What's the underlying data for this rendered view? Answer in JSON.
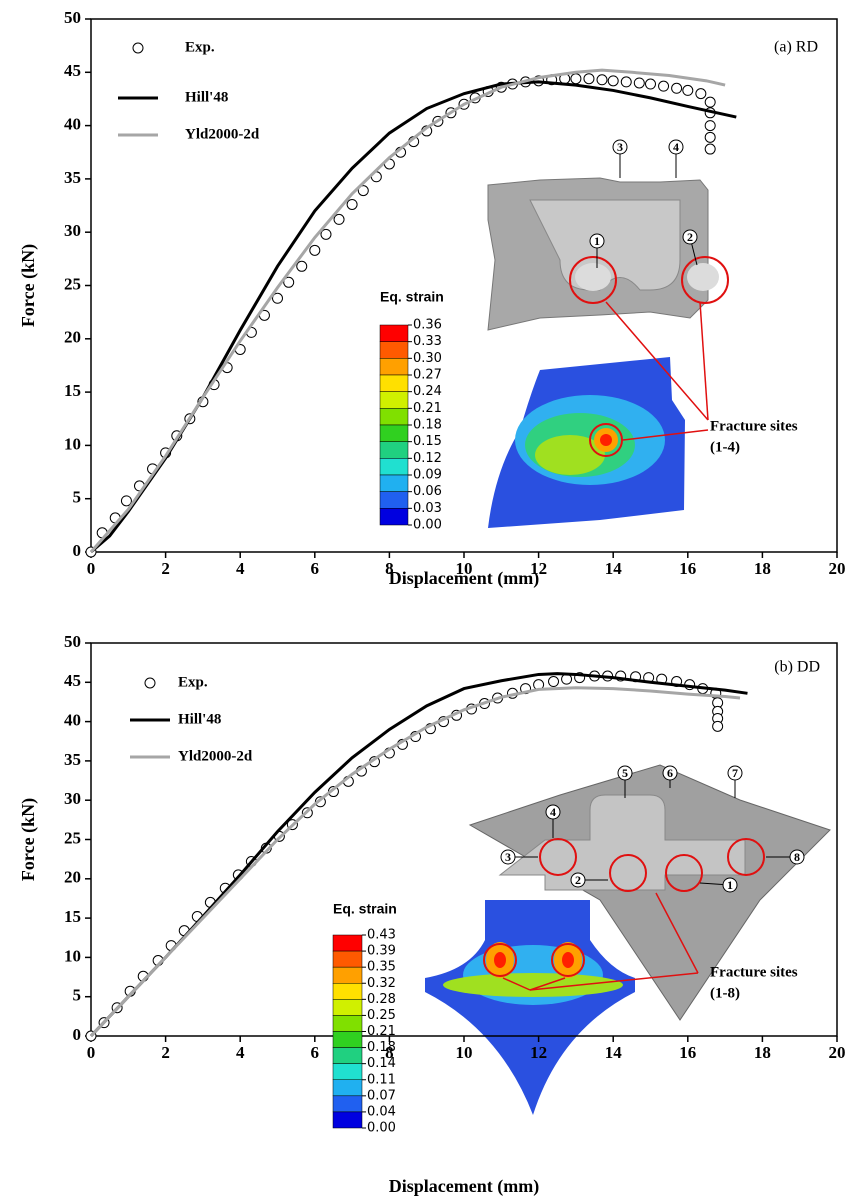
{
  "chart_data": [
    {
      "type": "line",
      "annotation": "(a) RD",
      "xlabel": "Displacement (mm)",
      "ylabel": "Force (kN)",
      "xlim": [
        0,
        20
      ],
      "ylim": [
        0,
        50
      ],
      "xticks": [
        0,
        2,
        4,
        6,
        8,
        10,
        12,
        14,
        16,
        18,
        20
      ],
      "yticks": [
        0,
        5,
        10,
        15,
        20,
        25,
        30,
        35,
        40,
        45,
        50
      ],
      "legend": "upper left",
      "series": [
        {
          "name": "Exp.",
          "color": "#000000",
          "marker": "circle",
          "x": [
            0,
            0.3,
            0.65,
            0.95,
            1.3,
            1.65,
            2,
            2.3,
            2.65,
            3,
            3.3,
            3.65,
            4,
            4.3,
            4.65,
            5,
            5.3,
            5.65,
            6,
            6.3,
            6.65,
            7,
            7.3,
            7.65,
            8,
            8.3,
            8.65,
            9,
            9.3,
            9.65,
            10,
            10.3,
            10.65,
            11,
            11.3,
            11.65,
            12,
            12.35,
            12.7,
            13,
            13.35,
            13.7,
            14,
            14.35,
            14.7,
            15,
            15.35,
            15.7,
            16,
            16.35,
            16.6,
            16.6,
            16.6,
            16.6,
            16.6
          ],
          "values": [
            0,
            1.8,
            3.2,
            4.8,
            6.2,
            7.8,
            9.3,
            10.9,
            12.5,
            14.1,
            15.7,
            17.3,
            19,
            20.6,
            22.2,
            23.8,
            25.3,
            26.8,
            28.3,
            29.8,
            31.2,
            32.6,
            33.9,
            35.2,
            36.4,
            37.5,
            38.5,
            39.5,
            40.4,
            41.2,
            42,
            42.6,
            43.2,
            43.6,
            43.9,
            44.1,
            44.2,
            44.3,
            44.4,
            44.4,
            44.4,
            44.3,
            44.2,
            44.1,
            44,
            43.9,
            43.7,
            43.5,
            43.3,
            43,
            42.2,
            41.2,
            40,
            38.9,
            37.8
          ]
        },
        {
          "name": "Hill'48",
          "color": "#000000",
          "x": [
            0,
            0.5,
            1,
            2,
            3,
            4,
            5,
            6,
            7,
            8,
            9,
            10,
            11,
            12,
            13,
            14,
            15,
            16,
            17.3
          ],
          "values": [
            0,
            1.5,
            3.8,
            8.8,
            14.5,
            20.8,
            26.8,
            32,
            36,
            39.3,
            41.6,
            43,
            43.9,
            44.1,
            43.8,
            43.3,
            42.6,
            41.8,
            40.8
          ]
        },
        {
          "name": "Yld2000-2d",
          "color": "#a6a6a6",
          "x": [
            0,
            1,
            2,
            3,
            4,
            5,
            6,
            7,
            8,
            9,
            10,
            11,
            12,
            13,
            13.7,
            14.5,
            15.5,
            16.5,
            17
          ],
          "values": [
            0,
            4,
            9,
            14.5,
            19.8,
            24.8,
            29.5,
            33.6,
            37,
            39.8,
            42,
            43.6,
            44.5,
            45,
            45.2,
            45,
            44.7,
            44.2,
            43.8
          ]
        }
      ],
      "colorbar": {
        "title": "Eq. strain",
        "labels": [
          "0.36",
          "0.33",
          "0.30",
          "0.27",
          "0.24",
          "0.21",
          "0.18",
          "0.15",
          "0.12",
          "0.09",
          "0.06",
          "0.03",
          "0.00"
        ],
        "colors": [
          "#ff0000",
          "#ff5a00",
          "#ffa000",
          "#ffe000",
          "#d0f000",
          "#80e000",
          "#30d020",
          "#20d080",
          "#20e0d0",
          "#20b0f0",
          "#2060f0",
          "#0000e0"
        ]
      },
      "fracture_label": [
        "Fracture sites",
        "(1-4)"
      ],
      "site_labels": [
        "1",
        "2",
        "3",
        "4"
      ]
    },
    {
      "type": "line",
      "annotation": "(b) DD",
      "xlabel": "Displacement (mm)",
      "ylabel": "Force (kN)",
      "xlim": [
        0,
        20
      ],
      "ylim": [
        0,
        50
      ],
      "xticks": [
        0,
        2,
        4,
        6,
        8,
        10,
        12,
        14,
        16,
        18,
        20
      ],
      "yticks": [
        0,
        5,
        10,
        15,
        20,
        25,
        30,
        35,
        40,
        45,
        50
      ],
      "legend": "upper left",
      "series": [
        {
          "name": "Exp.",
          "color": "#000000",
          "marker": "circle",
          "x": [
            0,
            0.35,
            0.7,
            1.05,
            1.4,
            1.8,
            2.15,
            2.5,
            2.85,
            3.2,
            3.6,
            3.95,
            4.3,
            4.7,
            5.05,
            5.4,
            5.8,
            6.15,
            6.5,
            6.9,
            7.25,
            7.6,
            8,
            8.35,
            8.7,
            9.1,
            9.45,
            9.8,
            10.2,
            10.55,
            10.9,
            11.3,
            11.65,
            12,
            12.4,
            12.75,
            13.1,
            13.5,
            13.85,
            14.2,
            14.6,
            14.95,
            15.3,
            15.7,
            16.05,
            16.4,
            16.75,
            16.8,
            16.8,
            16.8,
            16.8
          ],
          "values": [
            0,
            1.7,
            3.6,
            5.7,
            7.6,
            9.6,
            11.5,
            13.4,
            15.2,
            17,
            18.8,
            20.5,
            22.2,
            23.9,
            25.4,
            26.9,
            28.4,
            29.8,
            31.1,
            32.4,
            33.7,
            34.9,
            36,
            37.1,
            38.1,
            39.1,
            40,
            40.8,
            41.6,
            42.3,
            43,
            43.6,
            44.2,
            44.7,
            45.1,
            45.4,
            45.6,
            45.8,
            45.8,
            45.8,
            45.7,
            45.6,
            45.4,
            45.1,
            44.7,
            44.2,
            43.6,
            42.4,
            41.3,
            40.4,
            39.4
          ]
        },
        {
          "name": "Hill'48",
          "color": "#000000",
          "x": [
            0,
            1,
            2,
            3,
            4,
            5,
            6,
            7,
            8,
            9,
            10,
            11,
            12,
            12.5,
            13,
            14,
            15,
            16,
            17,
            17.6
          ],
          "values": [
            0,
            5,
            10,
            15.2,
            20.5,
            26,
            31,
            35.4,
            39,
            42,
            44.2,
            45.2,
            46,
            46.1,
            46,
            45.6,
            45,
            44.5,
            44,
            43.6
          ]
        },
        {
          "name": "Yld2000-2d",
          "color": "#a6a6a6",
          "x": [
            0,
            1,
            2,
            3,
            4,
            5,
            6,
            7,
            8,
            9,
            10,
            11,
            12,
            13,
            14,
            15,
            16,
            17,
            17.4
          ],
          "values": [
            0,
            5,
            10,
            15,
            20,
            25,
            29.5,
            33.3,
            36.5,
            39.3,
            41.5,
            43.1,
            44.1,
            44.3,
            44.2,
            43.9,
            43.5,
            43.2,
            43
          ]
        }
      ],
      "colorbar": {
        "title": "Eq. strain",
        "labels": [
          "0.43",
          "0.39",
          "0.35",
          "0.32",
          "0.28",
          "0.25",
          "0.21",
          "0.18",
          "0.14",
          "0.11",
          "0.07",
          "0.04",
          "0.00"
        ],
        "colors": [
          "#ff0000",
          "#ff5a00",
          "#ffa000",
          "#ffe000",
          "#d0f000",
          "#80e000",
          "#30d020",
          "#20d080",
          "#20e0d0",
          "#20b0f0",
          "#2060f0",
          "#0000e0"
        ]
      },
      "fracture_label": [
        "Fracture sites",
        "(1-8)"
      ],
      "site_labels": [
        "1",
        "2",
        "3",
        "4",
        "5",
        "6",
        "7",
        "8"
      ]
    }
  ]
}
